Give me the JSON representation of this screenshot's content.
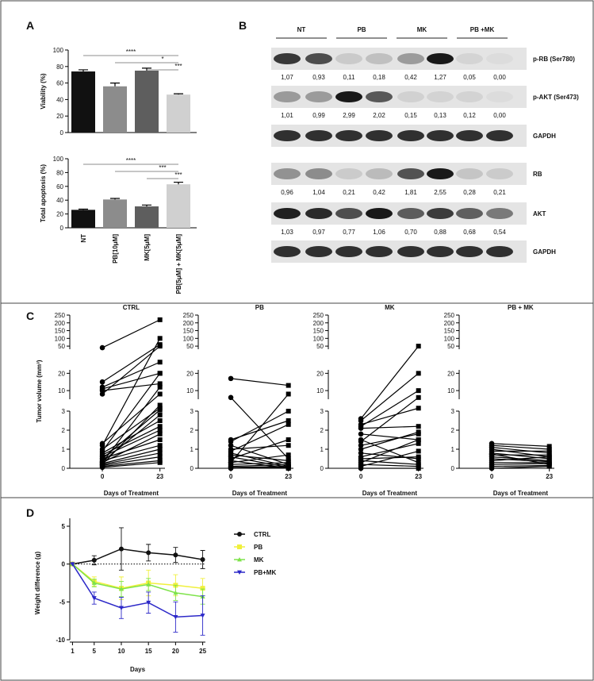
{
  "panel_labels": [
    "A",
    "B",
    "C",
    "D"
  ],
  "chart_data": [
    {
      "type": "bar",
      "ylabel": "Viability (%)",
      "categories": [
        null,
        null,
        null,
        null
      ],
      "values": [
        74,
        56,
        75,
        46
      ],
      "errors": [
        2,
        4,
        3,
        1
      ],
      "colors": [
        "#111111",
        "#8c8c8c",
        "#5e5e5e",
        "#d0d0d0"
      ],
      "ylim": [
        0,
        100
      ],
      "yticks": [
        0,
        20,
        40,
        60,
        80,
        100
      ],
      "annotations": [
        {
          "text": "****",
          "between": [
            0,
            3
          ]
        },
        {
          "text": "*",
          "between": [
            1,
            3
          ]
        },
        {
          "text": "***",
          "between": [
            2,
            3
          ]
        }
      ]
    },
    {
      "type": "bar",
      "ylabel": "Total apoptosis (%)",
      "categories": [
        "NT",
        "PB[10μM]",
        "MK[5μM]",
        "PB[5μM] + MK[5μM]"
      ],
      "values": [
        26,
        41,
        31,
        63
      ],
      "errors": [
        1,
        1.5,
        2,
        3
      ],
      "colors": [
        "#111111",
        "#8c8c8c",
        "#5e5e5e",
        "#d0d0d0"
      ],
      "ylim": [
        0,
        100
      ],
      "yticks": [
        0,
        20,
        40,
        60,
        80,
        100
      ],
      "annotations": [
        {
          "text": "****",
          "between": [
            0,
            3
          ]
        },
        {
          "text": "***",
          "between": [
            1,
            3
          ]
        },
        {
          "text": "***",
          "between": [
            2,
            3
          ]
        }
      ]
    },
    {
      "type": "paired",
      "title": "CTRL",
      "ylabel": "Tumor volume (mm³)",
      "xlabel": "Days of Treatment",
      "x": [
        0,
        23
      ],
      "xticks": [
        0,
        23
      ],
      "xlim": [
        -13,
        25
      ],
      "ylim": [
        0,
        250
      ],
      "y_breaks": [
        [
          3,
          5
        ],
        [
          22,
          30
        ]
      ],
      "yticks": [
        0,
        1,
        2,
        3,
        10,
        20,
        50,
        100,
        150,
        200,
        250
      ],
      "lines": [
        [
          40,
          220
        ],
        [
          15,
          60
        ],
        [
          12,
          25
        ],
        [
          10,
          14
        ],
        [
          11,
          20
        ],
        [
          8,
          50
        ],
        [
          1.3,
          8
        ],
        [
          1.0,
          3.5
        ],
        [
          0.8,
          2.5
        ],
        [
          0.6,
          2.0
        ],
        [
          0.5,
          1.5
        ],
        [
          0.4,
          1.2
        ],
        [
          0.35,
          2.8
        ],
        [
          0.3,
          1.8
        ],
        [
          0.25,
          1.0
        ],
        [
          0.2,
          0.8
        ],
        [
          0.15,
          0.6
        ],
        [
          0.1,
          0.4
        ],
        [
          0.5,
          3.2
        ],
        [
          0.7,
          2.2
        ],
        [
          0.05,
          0.3
        ],
        [
          0.3,
          12
        ],
        [
          0.2,
          4
        ],
        [
          1.2,
          100
        ],
        [
          0.9,
          20
        ]
      ]
    },
    {
      "type": "paired",
      "title": "PB",
      "xlabel": "Days of Treatment",
      "x": [
        0,
        23
      ],
      "xticks": [
        0,
        23
      ],
      "xlim": [
        -13,
        25
      ],
      "ylim": [
        0,
        250
      ],
      "y_breaks": [
        [
          3,
          5
        ],
        [
          22,
          30
        ]
      ],
      "yticks": [
        0,
        1,
        2,
        3,
        10,
        20,
        50,
        100,
        150,
        200,
        250
      ],
      "lines": [
        [
          17,
          13
        ],
        [
          6,
          0.5
        ],
        [
          1.5,
          2.5
        ],
        [
          1.4,
          3
        ],
        [
          1.2,
          0.2
        ],
        [
          1.0,
          1.2
        ],
        [
          0.9,
          2.3
        ],
        [
          0.8,
          0.1
        ],
        [
          0.6,
          0.05
        ],
        [
          0.5,
          1.5
        ],
        [
          0.4,
          0
        ],
        [
          0.3,
          0.7
        ],
        [
          0.2,
          0.3
        ],
        [
          0.1,
          0.2
        ],
        [
          0,
          0.05
        ],
        [
          0.05,
          0.1
        ],
        [
          0.3,
          8
        ],
        [
          0.7,
          0.4
        ]
      ]
    },
    {
      "type": "paired",
      "title": "MK",
      "xlabel": "Days of Treatment",
      "x": [
        0,
        23
      ],
      "xticks": [
        0,
        23
      ],
      "xlim": [
        -13,
        25
      ],
      "ylim": [
        0,
        250
      ],
      "y_breaks": [
        [
          3,
          5
        ],
        [
          22,
          30
        ]
      ],
      "yticks": [
        0,
        1,
        2,
        3,
        10,
        20,
        50,
        100,
        150,
        200,
        250
      ],
      "lines": [
        [
          2.6,
          50
        ],
        [
          2.5,
          20
        ],
        [
          2.3,
          3.5
        ],
        [
          2.1,
          2.2
        ],
        [
          1.8,
          1.5
        ],
        [
          1.5,
          0.3
        ],
        [
          1.2,
          1.8
        ],
        [
          1.0,
          1.9
        ],
        [
          0.8,
          0.5
        ],
        [
          0.6,
          1.3
        ],
        [
          0.5,
          0.6
        ],
        [
          0.3,
          1.5
        ],
        [
          0.1,
          0.9
        ],
        [
          0,
          0
        ],
        [
          0.2,
          0.1
        ],
        [
          2.2,
          10
        ],
        [
          1.4,
          6
        ],
        [
          0.4,
          0.2
        ]
      ]
    },
    {
      "type": "paired",
      "title": "PB + MK",
      "xlabel": "Days of Treatment",
      "x": [
        0,
        23
      ],
      "xticks": [
        0,
        23
      ],
      "xlim": [
        -13,
        25
      ],
      "ylim": [
        0,
        250
      ],
      "y_breaks": [
        [
          3,
          5
        ],
        [
          22,
          30
        ]
      ],
      "yticks": [
        0,
        1,
        2,
        3,
        10,
        20,
        50,
        100,
        150,
        200,
        250
      ],
      "lines": [
        [
          1.3,
          1.15
        ],
        [
          1.2,
          1.0
        ],
        [
          1.1,
          0.8
        ],
        [
          1.0,
          0.6
        ],
        [
          0.9,
          0.9
        ],
        [
          0.8,
          0.5
        ],
        [
          0.7,
          0.7
        ],
        [
          0.6,
          0.4
        ],
        [
          0.5,
          0.35
        ],
        [
          0.4,
          0.6
        ],
        [
          0.3,
          0.3
        ],
        [
          0.2,
          0.25
        ],
        [
          0.1,
          0.15
        ],
        [
          0,
          0.1
        ],
        [
          0.75,
          0.2
        ]
      ]
    },
    {
      "type": "line",
      "ylabel": "Weight difference (g)",
      "xlabel": "Days",
      "x": [
        1,
        5,
        10,
        15,
        20,
        25
      ],
      "xticks": [
        1,
        5,
        10,
        15,
        20,
        25
      ],
      "xlim": [
        0.5,
        25.5
      ],
      "ylim": [
        -10,
        5
      ],
      "yticks": [
        -10,
        -5,
        0,
        5
      ],
      "legend": "right",
      "series": [
        {
          "name": "CTRL",
          "color": "#111111",
          "marker": "circle",
          "values": [
            0,
            0.5,
            2,
            1.5,
            1.2,
            0.6
          ],
          "errors": [
            0,
            0.6,
            2.8,
            1.1,
            1.0,
            1.2
          ]
        },
        {
          "name": "PB",
          "color": "#f0f03c",
          "marker": "square",
          "values": [
            0,
            -2.3,
            -3.2,
            -2.5,
            -2.8,
            -3.2
          ],
          "errors": [
            0,
            0.6,
            1.5,
            1.7,
            1.4,
            1.3
          ]
        },
        {
          "name": "MK",
          "color": "#7ee34a",
          "marker": "triangle-up",
          "values": [
            0,
            -2.5,
            -3.3,
            -2.7,
            -3.8,
            -4.3
          ],
          "errors": [
            0,
            0.5,
            1.0,
            0.8,
            1.0,
            1.0
          ]
        },
        {
          "name": "PB+MK",
          "color": "#2c28c8",
          "marker": "triangle-down",
          "values": [
            0,
            -4.5,
            -5.8,
            -5.1,
            -7.0,
            -6.8
          ],
          "errors": [
            0,
            0.8,
            1.4,
            1.4,
            2.0,
            2.6
          ]
        }
      ]
    }
  ],
  "blot": {
    "groups": [
      "NT",
      "PB",
      "MK",
      "PB +MK"
    ],
    "rows": [
      {
        "label": "p-RB (Ser780)",
        "values": [
          1.07,
          0.93,
          0.11,
          0.18,
          0.42,
          1.27,
          0.05,
          0.0
        ],
        "value_labels": [
          "1,07",
          "0,93",
          "0,11",
          "0,18",
          "0,42",
          "1,27",
          "0,05",
          "0,00"
        ]
      },
      {
        "label": "p-AKT (Ser473)",
        "values": [
          1.01,
          0.99,
          2.99,
          2.02,
          0.15,
          0.13,
          0.12,
          0.0
        ],
        "value_labels": [
          "1,01",
          "0,99",
          "2,99",
          "2,02",
          "0,15",
          "0,13",
          "0,12",
          "0,00"
        ]
      },
      {
        "label": "GAPDH"
      },
      {
        "label": "RB",
        "values": [
          0.96,
          1.04,
          0.21,
          0.42,
          1.81,
          2.55,
          0.28,
          0.21
        ],
        "value_labels": [
          "0,96",
          "1,04",
          "0,21",
          "0,42",
          "1,81",
          "2,55",
          "0,28",
          "0,21"
        ]
      },
      {
        "label": "AKT",
        "values": [
          1.03,
          0.97,
          0.77,
          1.06,
          0.7,
          0.88,
          0.68,
          0.54
        ],
        "value_labels": [
          "1,03",
          "0,97",
          "0,77",
          "1,06",
          "0,70",
          "0,88",
          "0,68",
          "0,54"
        ]
      },
      {
        "label": "GAPDH"
      }
    ]
  }
}
